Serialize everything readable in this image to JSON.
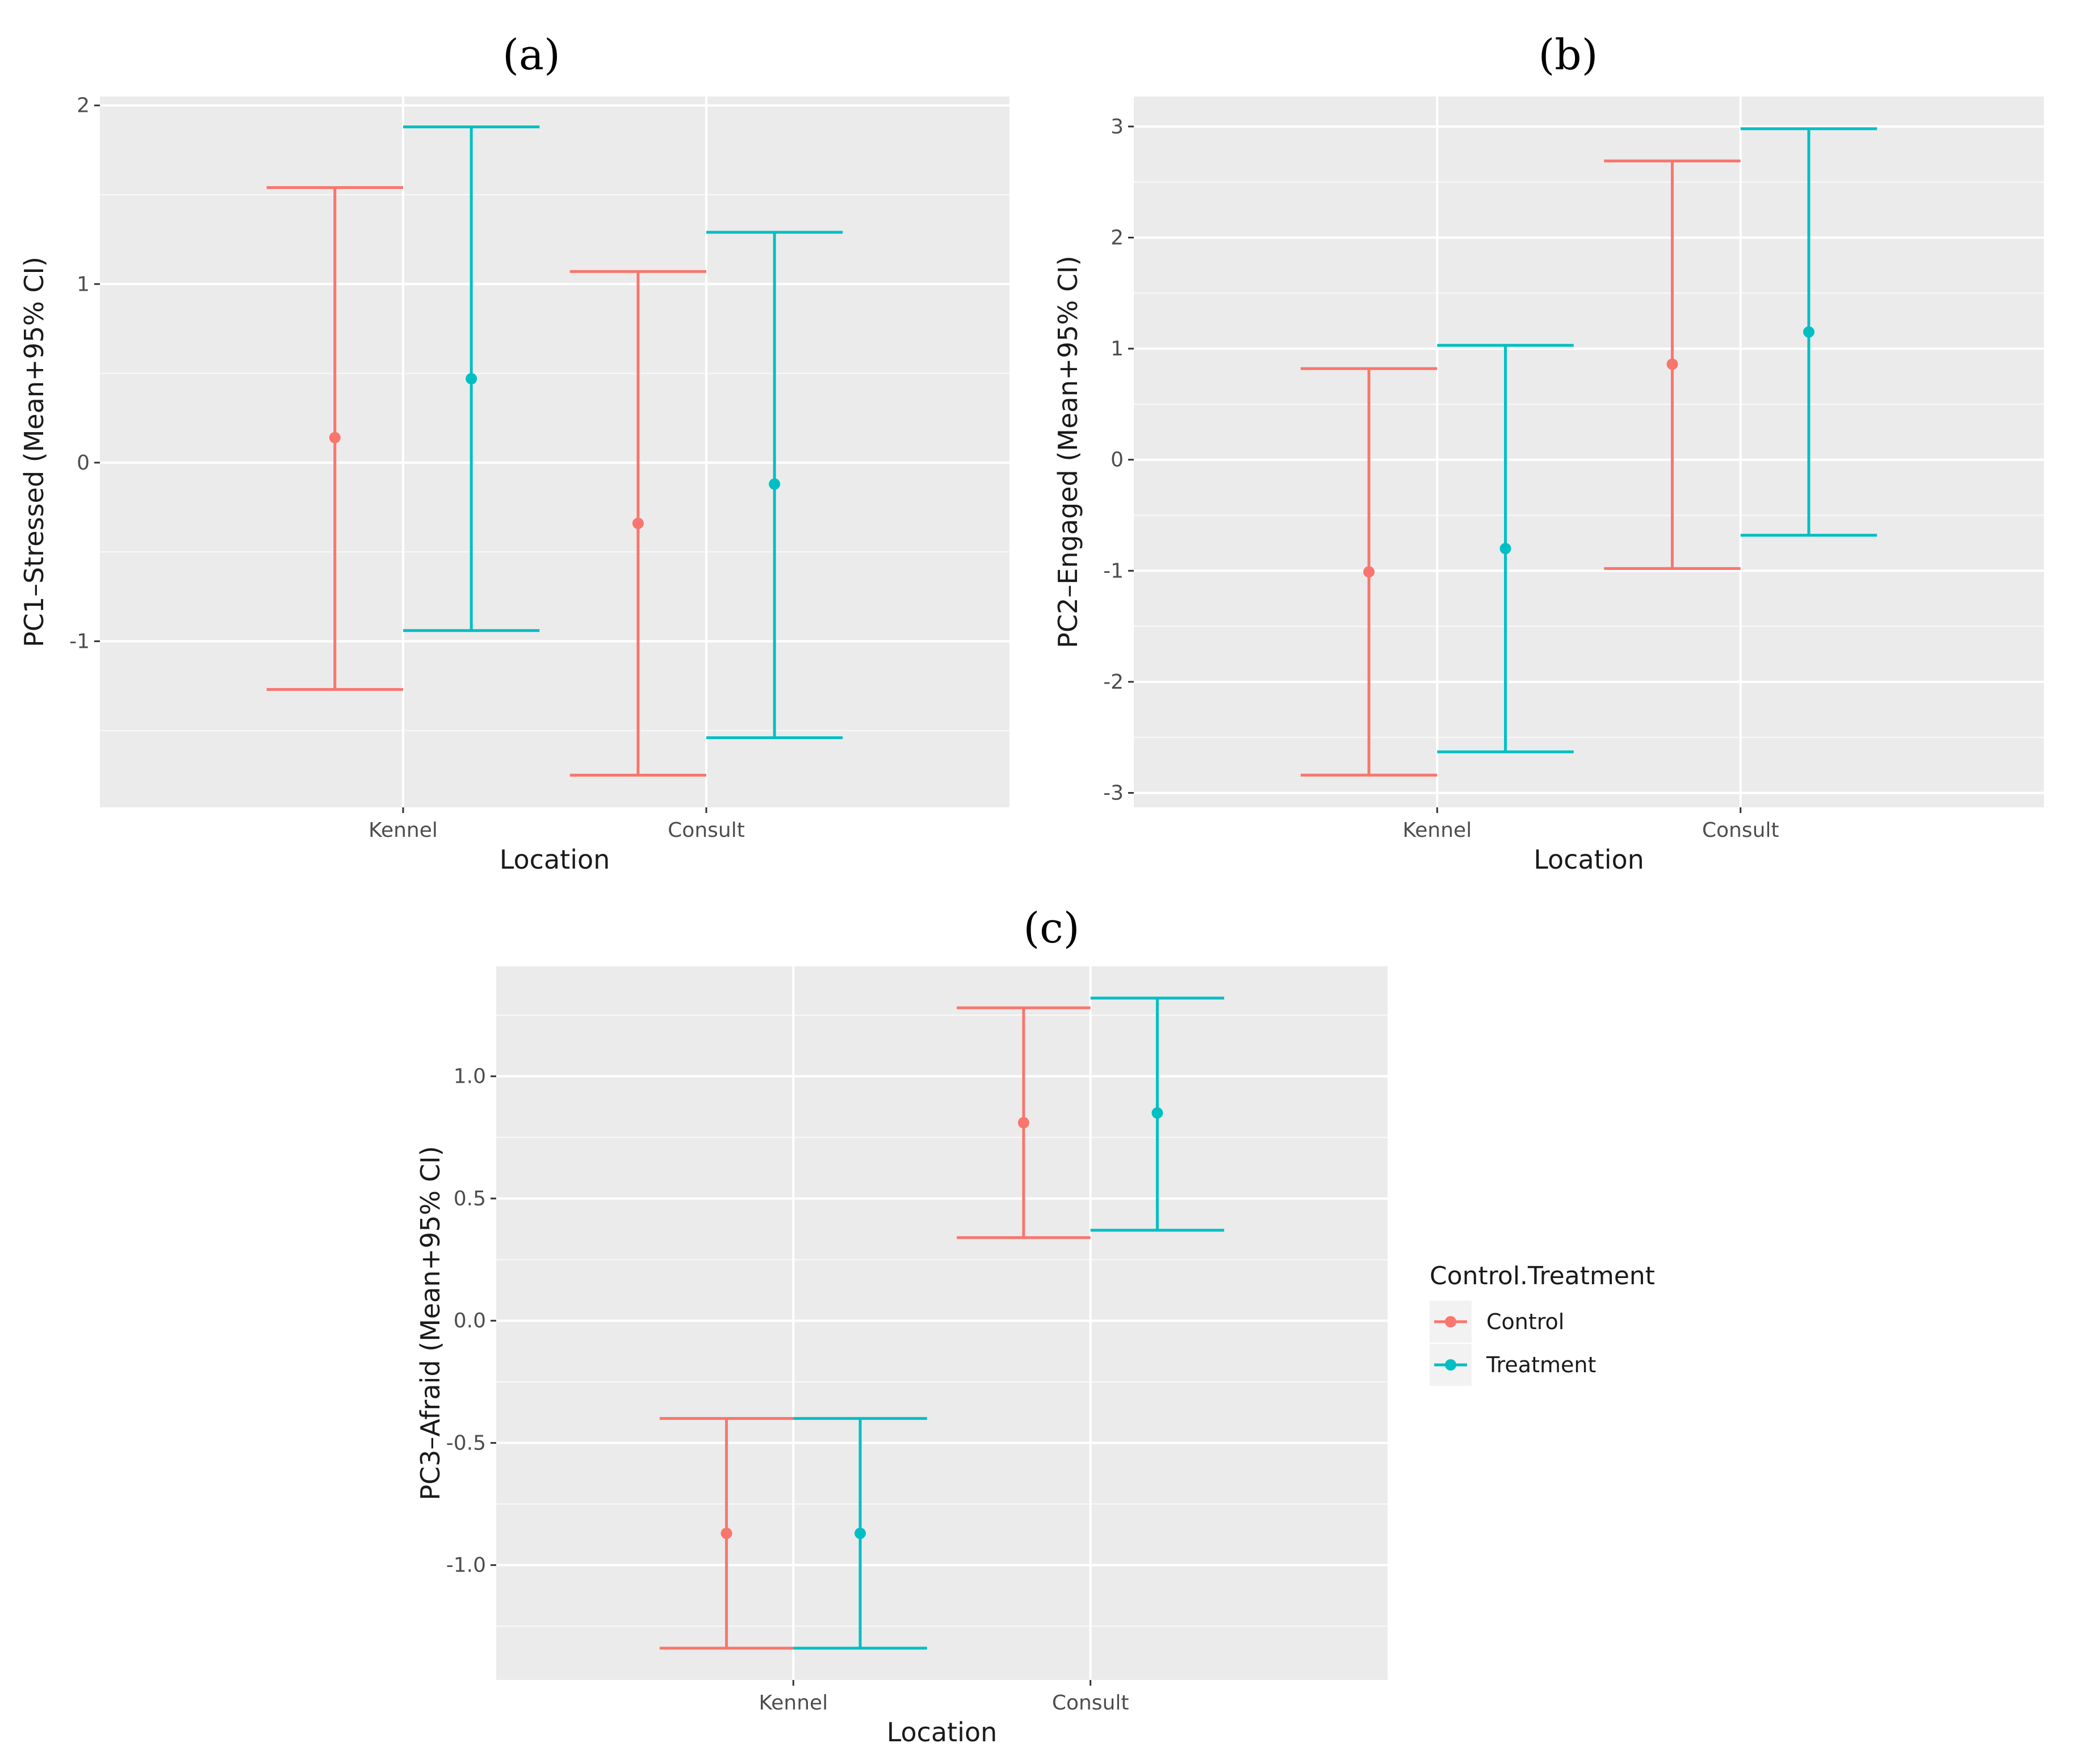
{
  "figure_titles": [
    "(a)",
    "(b)",
    "(c)"
  ],
  "legend": {
    "title": "Control.Treatment",
    "items": [
      {
        "label": "Control",
        "color": "#F8766D"
      },
      {
        "label": "Treatment",
        "color": "#00BFC4"
      }
    ]
  },
  "chart_data": [
    {
      "type": "errorbar",
      "panel": "(a)",
      "xlabel": "Location",
      "ylabel": "PC1–Stressed (Mean+95% CI)",
      "categories": [
        "Kennel",
        "Consult"
      ],
      "ylim": [
        -1.93,
        2.05
      ],
      "yticks": [
        -1,
        0,
        1,
        2
      ],
      "ytick_labels": [
        "-1",
        "0",
        "1",
        "2"
      ],
      "series": [
        {
          "name": "Control",
          "color": "#F8766D",
          "mean": [
            0.14,
            -0.34
          ],
          "lower": [
            -1.27,
            -1.75
          ],
          "upper": [
            1.54,
            1.07
          ]
        },
        {
          "name": "Treatment",
          "color": "#00BFC4",
          "mean": [
            0.47,
            -0.12
          ],
          "lower": [
            -0.94,
            -1.54
          ],
          "upper": [
            1.88,
            1.29
          ]
        }
      ]
    },
    {
      "type": "errorbar",
      "panel": "(b)",
      "xlabel": "Location",
      "ylabel": "PC2–Engaged (Mean+95% CI)",
      "categories": [
        "Kennel",
        "Consult"
      ],
      "ylim": [
        -3.13,
        3.27
      ],
      "yticks": [
        -3,
        -2,
        -1,
        0,
        1,
        2,
        3
      ],
      "ytick_labels": [
        "-3",
        "-2",
        "-1",
        "0",
        "1",
        "2",
        "3"
      ],
      "series": [
        {
          "name": "Control",
          "color": "#F8766D",
          "mean": [
            -1.01,
            0.86
          ],
          "lower": [
            -2.84,
            -0.98
          ],
          "upper": [
            0.82,
            2.69
          ]
        },
        {
          "name": "Treatment",
          "color": "#00BFC4",
          "mean": [
            -0.8,
            1.15
          ],
          "lower": [
            -2.63,
            -0.68
          ],
          "upper": [
            1.03,
            2.98
          ]
        }
      ]
    },
    {
      "type": "errorbar",
      "panel": "(c)",
      "xlabel": "Location",
      "ylabel": "PC3–Afraid (Mean+95% CI)",
      "categories": [
        "Kennel",
        "Consult"
      ],
      "ylim": [
        -1.47,
        1.45
      ],
      "yticks": [
        -1.0,
        -0.5,
        0.0,
        0.5,
        1.0
      ],
      "ytick_labels": [
        "-1.0",
        "-0.5",
        "0.0",
        "0.5",
        "1.0"
      ],
      "series": [
        {
          "name": "Control",
          "color": "#F8766D",
          "mean": [
            -0.87,
            0.81
          ],
          "lower": [
            -1.34,
            0.34
          ],
          "upper": [
            -0.4,
            1.28
          ]
        },
        {
          "name": "Treatment",
          "color": "#00BFC4",
          "mean": [
            -0.87,
            0.85
          ],
          "lower": [
            -1.34,
            0.37
          ],
          "upper": [
            -0.4,
            1.32
          ]
        }
      ]
    }
  ]
}
